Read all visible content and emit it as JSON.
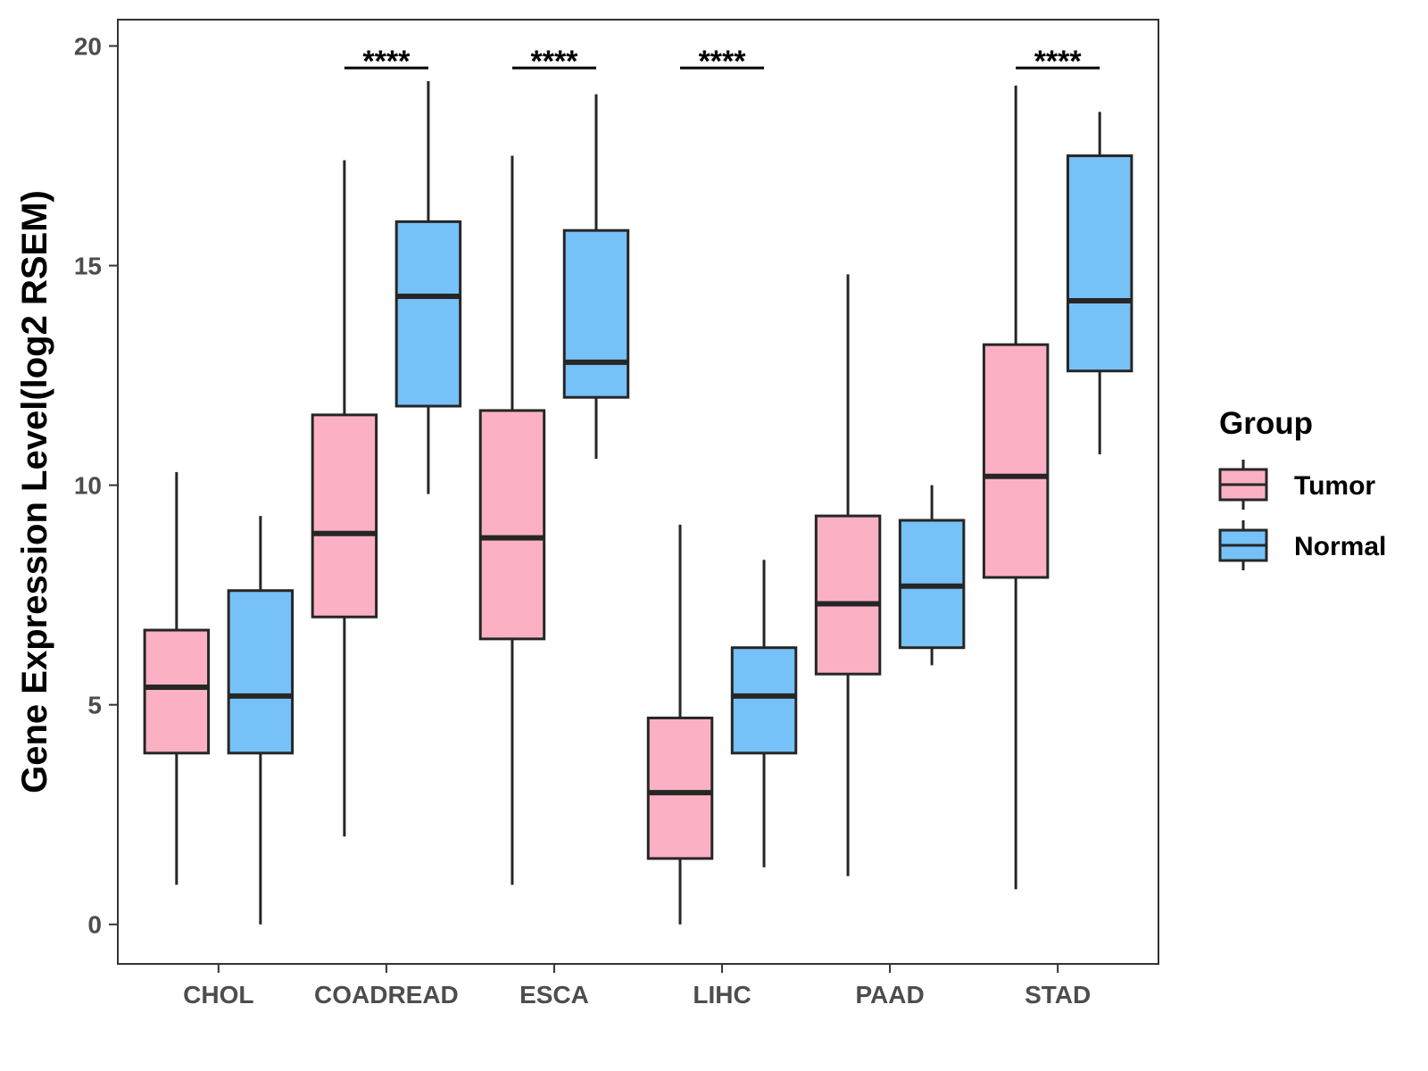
{
  "chart_data": {
    "type": "boxplot",
    "title": "",
    "xlabel": "",
    "ylabel": "Gene Expression Level(log2 RSEM)",
    "ylim": [
      -0.9,
      20.6
    ],
    "yticks": [
      0,
      5,
      10,
      15,
      20
    ],
    "ytick_labels": [
      "0",
      "5",
      "10",
      "15",
      "20"
    ],
    "grid": false,
    "categories": [
      "CHOL",
      "COADREAD",
      "ESCA",
      "LIHC",
      "PAAD",
      "STAD"
    ],
    "legend": {
      "title": "Group",
      "position": "right",
      "entries": [
        {
          "name": "Tumor",
          "color": "#FBB1C3"
        },
        {
          "name": "Normal",
          "color": "#76C1F7"
        }
      ]
    },
    "series": [
      {
        "name": "Tumor",
        "color": "#FBB1C3",
        "boxes": [
          {
            "category": "CHOL",
            "min": 0.9,
            "q1": 3.9,
            "median": 5.4,
            "q3": 6.7,
            "max": 10.3
          },
          {
            "category": "COADREAD",
            "min": 2.0,
            "q1": 7.0,
            "median": 8.9,
            "q3": 11.6,
            "max": 17.4
          },
          {
            "category": "ESCA",
            "min": 0.9,
            "q1": 6.5,
            "median": 8.8,
            "q3": 11.7,
            "max": 17.5
          },
          {
            "category": "LIHC",
            "min": 0.0,
            "q1": 1.5,
            "median": 3.0,
            "q3": 4.7,
            "max": 9.1
          },
          {
            "category": "PAAD",
            "min": 1.1,
            "q1": 5.7,
            "median": 7.3,
            "q3": 9.3,
            "max": 14.8
          },
          {
            "category": "STAD",
            "min": 0.8,
            "q1": 7.9,
            "median": 10.2,
            "q3": 13.2,
            "max": 19.1
          }
        ]
      },
      {
        "name": "Normal",
        "color": "#76C1F7",
        "boxes": [
          {
            "category": "CHOL",
            "min": 0.0,
            "q1": 3.9,
            "median": 5.2,
            "q3": 7.6,
            "max": 9.3
          },
          {
            "category": "COADREAD",
            "min": 9.8,
            "q1": 11.8,
            "median": 14.3,
            "q3": 16.0,
            "max": 19.2
          },
          {
            "category": "ESCA",
            "min": 10.6,
            "q1": 12.0,
            "median": 12.8,
            "q3": 15.8,
            "max": 18.9
          },
          {
            "category": "LIHC",
            "min": 1.3,
            "q1": 3.9,
            "median": 5.2,
            "q3": 6.3,
            "max": 8.3
          },
          {
            "category": "PAAD",
            "min": 5.9,
            "q1": 6.3,
            "median": 7.7,
            "q3": 9.2,
            "max": 10.0
          },
          {
            "category": "STAD",
            "min": 10.7,
            "q1": 12.6,
            "median": 14.2,
            "q3": 17.5,
            "max": 18.5
          }
        ]
      }
    ],
    "annotations": [
      {
        "category": "COADREAD",
        "text": "****",
        "y": 19.5
      },
      {
        "category": "ESCA",
        "text": "****",
        "y": 19.5
      },
      {
        "category": "LIHC",
        "text": "****",
        "y": 19.5
      },
      {
        "category": "STAD",
        "text": "****",
        "y": 19.5
      }
    ]
  }
}
